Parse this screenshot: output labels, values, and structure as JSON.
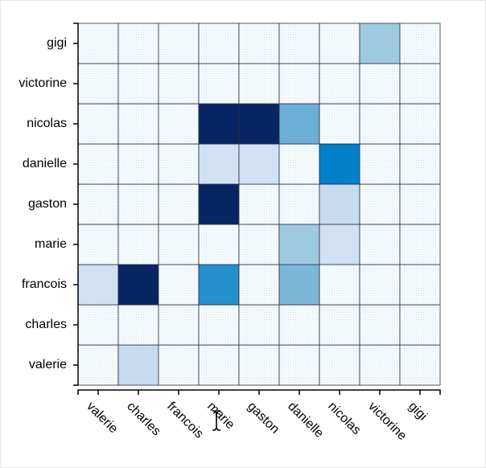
{
  "chart_data": {
    "type": "heatmap",
    "title": "",
    "xlabel": "",
    "ylabel": "",
    "x_categories": [
      "valerie",
      "charles",
      "francois",
      "marie",
      "gaston",
      "danielle",
      "nicolas",
      "victorine",
      "gigi"
    ],
    "y_categories": [
      "valerie",
      "charles",
      "francois",
      "marie",
      "gaston",
      "danielle",
      "nicolas",
      "victorine",
      "gigi"
    ],
    "values": [
      [
        0,
        0.25,
        0,
        0,
        0,
        0,
        0,
        0,
        0
      ],
      [
        0,
        0,
        0,
        0,
        0,
        0,
        0,
        0,
        0
      ],
      [
        0.15,
        1,
        0,
        0.65,
        0,
        0.5,
        0,
        0,
        0
      ],
      [
        0,
        0,
        0,
        0,
        0,
        0.4,
        0.15,
        0,
        0
      ],
      [
        0,
        0,
        0,
        1,
        0,
        0,
        0.25,
        0,
        0
      ],
      [
        0,
        0,
        0,
        0.15,
        0.15,
        0,
        0.7,
        0,
        0
      ],
      [
        0,
        0,
        0,
        1,
        1,
        0.55,
        0,
        0,
        0
      ],
      [
        0,
        0,
        0,
        0,
        0,
        0,
        0,
        0,
        0
      ],
      [
        0,
        0,
        0,
        0,
        0,
        0,
        0,
        0.4,
        0
      ]
    ],
    "colormap": "Blues",
    "empty_color": "#f4fafc",
    "grid": true,
    "legend": "none"
  }
}
